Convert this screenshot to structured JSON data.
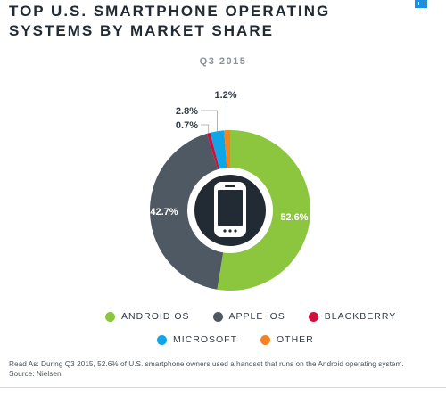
{
  "chart_data": {
    "type": "pie",
    "title": "TOP U.S. SMARTPHONE OPERATING SYSTEMS BY MARKET SHARE",
    "subtitle": "Q3 2015",
    "categories": [
      "ANDROID OS",
      "APPLE iOS",
      "BLACKBERRY",
      "MICROSOFT",
      "OTHER"
    ],
    "values": [
      52.6,
      42.7,
      0.7,
      2.8,
      1.2
    ],
    "value_labels": [
      "52.6%",
      "42.7%",
      "0.7%",
      "2.8%",
      "1.2%"
    ],
    "colors": [
      "#8cc63f",
      "#4f5964",
      "#d0103a",
      "#0fa6e8",
      "#f58220"
    ],
    "donut": true,
    "center_icon": "smartphone-icon"
  },
  "footnote": {
    "read_as": "Read As: During Q3 2015, 52.6% of U.S. smartphone owners used a handset that runs on the Android operating system.",
    "source": "Source: Nielsen"
  }
}
